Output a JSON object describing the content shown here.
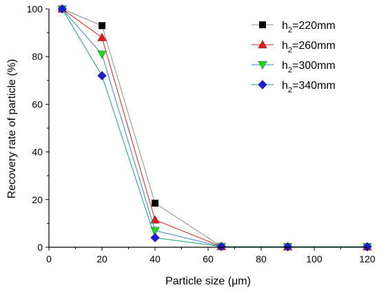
{
  "chart_data": {
    "type": "line",
    "xlabel": "Particle size (μm)",
    "ylabel": "Recovery rate of particle (%)",
    "xlim": [
      0,
      120
    ],
    "ylim": [
      0,
      100
    ],
    "xticks": [
      0,
      20,
      40,
      60,
      80,
      100,
      120
    ],
    "yticks": [
      0,
      20,
      40,
      60,
      80,
      100
    ],
    "grid": false,
    "legend_position": "top-right",
    "series": [
      {
        "name": "h2=220mm",
        "label_main": "h",
        "label_sub": "2",
        "label_rest": "=220mm",
        "marker": "square",
        "color": "#000000",
        "line_color": "#8c8c8c",
        "x": [
          5,
          20,
          40,
          65,
          90,
          120
        ],
        "y": [
          100,
          93,
          18.5,
          0.3,
          0.2,
          0.2
        ]
      },
      {
        "name": "h2=260mm",
        "label_main": "h",
        "label_sub": "2",
        "label_rest": "=260mm",
        "marker": "triangle-up",
        "color": "#e01b1b",
        "line_color": "#e01b1b",
        "x": [
          5,
          20,
          40,
          65,
          90,
          120
        ],
        "y": [
          100,
          88,
          11.5,
          0.3,
          0.2,
          0.2
        ]
      },
      {
        "name": "h2=300mm",
        "label_main": "h",
        "label_sub": "2",
        "label_rest": "=300mm",
        "marker": "triangle-down",
        "color": "#22d322",
        "line_color": "#3a7fd5",
        "x": [
          5,
          20,
          40,
          65,
          90,
          120
        ],
        "y": [
          100,
          81,
          7,
          0.3,
          0.2,
          0.2
        ]
      },
      {
        "name": "h2=340mm",
        "label_main": "h",
        "label_sub": "2",
        "label_rest": "=340mm",
        "marker": "diamond",
        "color": "#1c1cd6",
        "line_color": "#1aa06a",
        "x": [
          5,
          20,
          40,
          65,
          90,
          120
        ],
        "y": [
          100,
          72,
          4,
          0.3,
          0.2,
          0.2
        ]
      }
    ]
  }
}
